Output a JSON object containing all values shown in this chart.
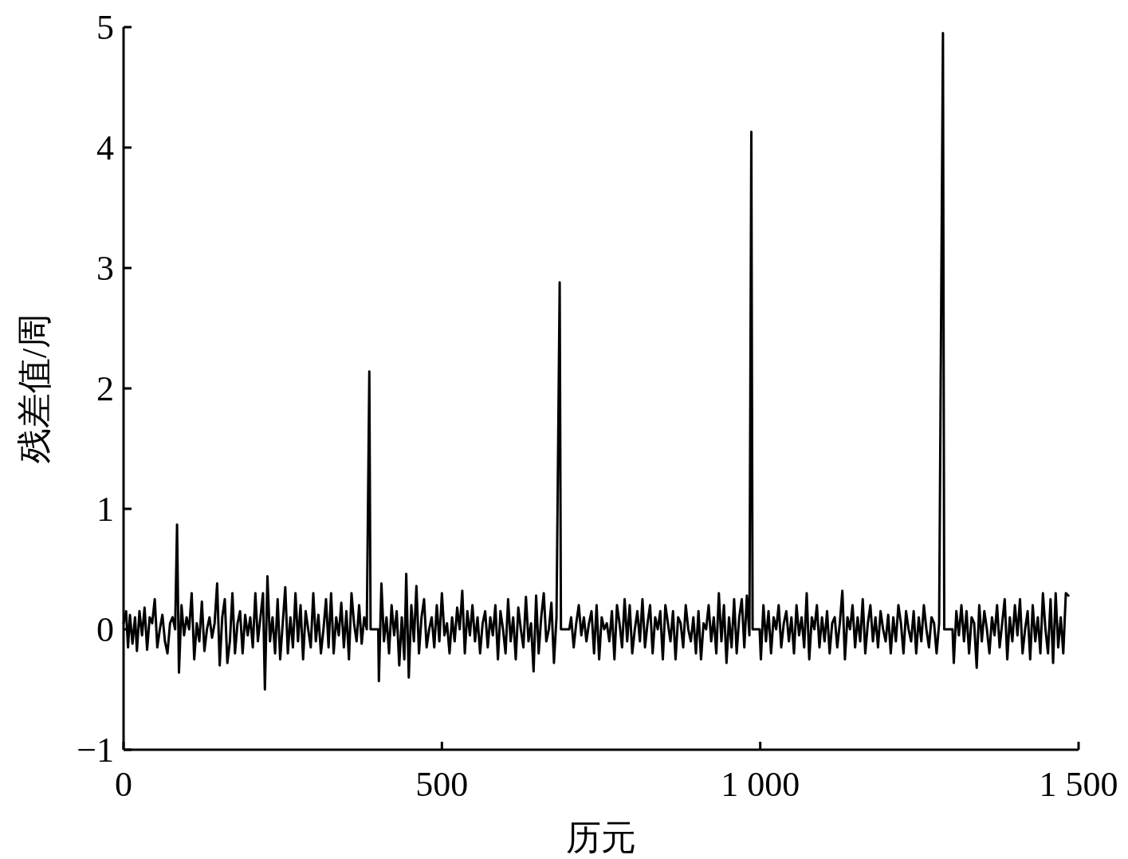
{
  "chart_data": {
    "type": "line",
    "xlabel": "历元",
    "ylabel": "残差值/周",
    "color": "#000000",
    "line_style": "solid",
    "xlim": [
      0,
      1500
    ],
    "xticks": [
      0,
      500,
      {
        "value": 1000,
        "label": "1 000"
      },
      {
        "value": 1500,
        "label": "1 500"
      }
    ],
    "ylim": [
      -1,
      5
    ],
    "yticks": [
      {
        "value": -1,
        "label": "−1"
      },
      0,
      1,
      2,
      3,
      4,
      5
    ],
    "x": [
      0,
      4,
      7,
      10,
      14,
      18,
      21,
      25,
      29,
      33,
      37,
      41,
      45,
      49,
      53,
      57,
      61,
      65,
      69,
      73,
      77,
      81,
      84,
      87,
      91,
      95,
      99,
      103,
      107,
      111,
      115,
      119,
      123,
      127,
      131,
      135,
      139,
      143,
      147,
      151,
      155,
      159,
      163,
      167,
      171,
      175,
      179,
      183,
      187,
      191,
      195,
      199,
      203,
      207,
      211,
      215,
      219,
      222,
      226,
      230,
      234,
      238,
      242,
      246,
      250,
      254,
      258,
      262,
      266,
      270,
      274,
      278,
      282,
      286,
      290,
      294,
      298,
      302,
      306,
      310,
      314,
      318,
      322,
      326,
      330,
      334,
      338,
      342,
      346,
      350,
      354,
      358,
      362,
      366,
      370,
      374,
      378,
      382,
      386,
      388,
      400,
      401,
      405,
      409,
      413,
      417,
      421,
      425,
      429,
      433,
      437,
      441,
      444,
      448,
      452,
      456,
      460,
      464,
      468,
      472,
      476,
      480,
      484,
      488,
      492,
      496,
      500,
      504,
      508,
      512,
      516,
      520,
      524,
      528,
      532,
      536,
      540,
      544,
      548,
      552,
      556,
      560,
      564,
      568,
      572,
      576,
      580,
      584,
      588,
      592,
      596,
      600,
      604,
      608,
      612,
      616,
      620,
      624,
      628,
      632,
      636,
      640,
      644,
      648,
      652,
      656,
      660,
      664,
      668,
      672,
      676,
      680,
      685,
      687,
      700,
      703,
      707,
      711,
      715,
      719,
      723,
      727,
      731,
      735,
      739,
      743,
      747,
      751,
      755,
      759,
      763,
      767,
      771,
      775,
      779,
      783,
      787,
      791,
      795,
      799,
      803,
      807,
      811,
      815,
      819,
      823,
      827,
      831,
      835,
      839,
      843,
      847,
      851,
      855,
      859,
      863,
      867,
      871,
      875,
      879,
      883,
      887,
      891,
      895,
      899,
      903,
      907,
      911,
      915,
      919,
      923,
      927,
      931,
      935,
      939,
      943,
      947,
      951,
      955,
      959,
      963,
      967,
      971,
      975,
      979,
      983,
      986,
      988,
      999,
      1001,
      1005,
      1009,
      1013,
      1017,
      1021,
      1025,
      1029,
      1033,
      1037,
      1041,
      1045,
      1049,
      1053,
      1057,
      1061,
      1065,
      1069,
      1073,
      1077,
      1081,
      1085,
      1089,
      1093,
      1097,
      1101,
      1105,
      1109,
      1113,
      1117,
      1121,
      1125,
      1129,
      1133,
      1137,
      1141,
      1145,
      1149,
      1153,
      1157,
      1161,
      1165,
      1169,
      1173,
      1177,
      1181,
      1185,
      1189,
      1193,
      1197,
      1201,
      1205,
      1209,
      1213,
      1217,
      1221,
      1225,
      1229,
      1233,
      1237,
      1241,
      1245,
      1249,
      1253,
      1257,
      1261,
      1265,
      1269,
      1273,
      1277,
      1281,
      1287,
      1289,
      1302,
      1304,
      1308,
      1312,
      1316,
      1320,
      1324,
      1328,
      1332,
      1336,
      1340,
      1344,
      1348,
      1352,
      1356,
      1360,
      1364,
      1368,
      1372,
      1376,
      1380,
      1384,
      1388,
      1392,
      1396,
      1400,
      1404,
      1408,
      1412,
      1416,
      1420,
      1424,
      1428,
      1432,
      1436,
      1440,
      1444,
      1448,
      1452,
      1456,
      1460,
      1464,
      1468,
      1472,
      1476,
      1480,
      1484
    ],
    "values": [
      0.05,
      0.15,
      -0.15,
      0.12,
      -0.12,
      0.1,
      -0.18,
      0.15,
      -0.05,
      0.18,
      -0.17,
      0.1,
      0.05,
      0.25,
      -0.15,
      0.0,
      0.12,
      -0.1,
      -0.2,
      0.05,
      0.1,
      0.0,
      0.87,
      -0.36,
      0.2,
      -0.05,
      0.1,
      0.0,
      0.3,
      -0.25,
      0.05,
      -0.1,
      0.23,
      -0.18,
      0.0,
      0.1,
      -0.07,
      0.05,
      0.38,
      -0.3,
      0.1,
      0.25,
      -0.28,
      -0.1,
      0.3,
      -0.2,
      0.05,
      0.15,
      -0.2,
      0.12,
      -0.05,
      0.1,
      -0.15,
      0.3,
      -0.1,
      0.1,
      0.3,
      -0.5,
      0.44,
      -0.1,
      0.1,
      -0.2,
      0.25,
      -0.25,
      0.05,
      0.35,
      -0.2,
      0.1,
      -0.15,
      0.3,
      -0.1,
      0.2,
      -0.25,
      0.15,
      0.0,
      -0.15,
      0.3,
      -0.1,
      0.12,
      -0.2,
      0.0,
      0.25,
      -0.15,
      0.3,
      -0.2,
      0.1,
      -0.05,
      0.22,
      -0.15,
      0.15,
      -0.25,
      0.3,
      0.05,
      -0.1,
      0.2,
      -0.12,
      0.1,
      0.0,
      2.14,
      0,
      0,
      -0.43,
      0.38,
      -0.1,
      0.1,
      -0.2,
      0.2,
      -0.05,
      0.15,
      -0.3,
      0.1,
      -0.25,
      0.46,
      -0.4,
      0.2,
      -0.1,
      0.36,
      -0.2,
      0.1,
      0.25,
      -0.15,
      0.0,
      0.1,
      -0.15,
      0.2,
      -0.1,
      0.3,
      -0.05,
      0.05,
      -0.2,
      0.1,
      -0.1,
      0.18,
      0.0,
      0.32,
      -0.2,
      0.15,
      -0.05,
      0.2,
      -0.1,
      0.1,
      -0.2,
      0.05,
      0.15,
      -0.15,
      0.1,
      -0.05,
      0.2,
      -0.25,
      0.15,
      0.0,
      -0.2,
      0.25,
      -0.1,
      0.1,
      -0.25,
      0.18,
      0.0,
      -0.15,
      0.27,
      -0.1,
      0.05,
      -0.35,
      0.28,
      -0.2,
      0.1,
      0.3,
      -0.1,
      0.0,
      0.22,
      -0.28,
      0.1,
      2.88,
      0,
      0,
      0.1,
      -0.15,
      0.05,
      0.2,
      -0.05,
      0.1,
      -0.1,
      0.05,
      0.15,
      -0.2,
      0.2,
      -0.25,
      0.1,
      0.0,
      0.05,
      -0.1,
      0.15,
      -0.25,
      0.2,
      0.05,
      -0.15,
      0.25,
      -0.1,
      0.2,
      -0.2,
      0.0,
      0.15,
      -0.1,
      0.25,
      -0.15,
      0.05,
      0.2,
      -0.2,
      0.1,
      0.0,
      0.15,
      -0.25,
      0.2,
      0.05,
      -0.1,
      0.15,
      -0.25,
      0.1,
      0.05,
      -0.15,
      0.2,
      0.0,
      -0.1,
      0.1,
      -0.2,
      0.15,
      -0.25,
      0.05,
      0.0,
      0.2,
      -0.1,
      0.1,
      -0.2,
      0.3,
      -0.1,
      0.2,
      -0.28,
      0.1,
      -0.15,
      0.25,
      -0.2,
      0.1,
      0.25,
      -0.15,
      0.28,
      -0.05,
      4.13,
      0,
      0,
      -0.25,
      0.2,
      -0.1,
      0.15,
      -0.2,
      0.1,
      0.0,
      0.2,
      -0.15,
      0.05,
      0.15,
      -0.1,
      0.1,
      -0.2,
      0.2,
      -0.05,
      0.1,
      -0.15,
      0.3,
      -0.25,
      0.1,
      0.0,
      0.2,
      -0.15,
      0.1,
      -0.1,
      0.15,
      -0.2,
      0.05,
      0.1,
      -0.15,
      0.05,
      0.32,
      -0.25,
      0.1,
      0.0,
      0.2,
      -0.15,
      0.1,
      -0.1,
      0.25,
      -0.2,
      0.05,
      0.2,
      -0.1,
      0.1,
      -0.15,
      0.15,
      0.0,
      -0.1,
      0.12,
      -0.2,
      0.1,
      -0.1,
      0.2,
      0.05,
      -0.2,
      0.15,
      0.0,
      -0.1,
      0.15,
      -0.2,
      0.1,
      -0.1,
      0.2,
      0.0,
      -0.15,
      0.1,
      0.05,
      -0.2,
      0.05,
      4.95,
      0,
      0,
      -0.28,
      0.15,
      -0.05,
      0.2,
      -0.1,
      0.15,
      -0.2,
      0.1,
      0.05,
      -0.32,
      0.2,
      -0.1,
      0.15,
      0.0,
      -0.2,
      0.1,
      -0.05,
      0.2,
      -0.15,
      0.05,
      0.25,
      -0.25,
      0.1,
      -0.1,
      0.2,
      -0.05,
      0.25,
      -0.2,
      0.0,
      0.15,
      -0.25,
      0.2,
      -0.1,
      0.1,
      -0.2,
      0.3,
      0.0,
      -0.2,
      0.25,
      -0.28,
      0.3,
      -0.15,
      0.1,
      -0.2,
      0.3,
      0.28
    ]
  }
}
